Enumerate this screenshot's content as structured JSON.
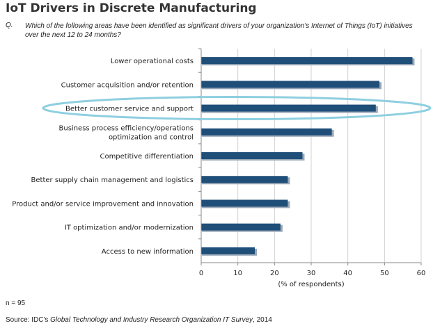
{
  "header": {
    "title": "IoT Drivers in Discrete Manufacturing",
    "q_label": "Q.",
    "question": "Which of the following areas have been identified as significant drivers of your organization's Internet of Things (IoT) initiatives over the next 12 to 24 months?"
  },
  "chart_data": {
    "type": "bar",
    "orientation": "horizontal",
    "categories": [
      [
        "Lower operational costs"
      ],
      [
        "Customer acquisition and/or retention"
      ],
      [
        "Better customer service and support"
      ],
      [
        "Business process efficiency/operations",
        "optimization and control"
      ],
      [
        "Competitive differentiation"
      ],
      [
        "Better supply chain management and logistics"
      ],
      [
        "Product and/or service improvement and innovation"
      ],
      [
        "IT optimization and/or modernization"
      ],
      [
        "Access to new information"
      ]
    ],
    "values": [
      58,
      49,
      48,
      36,
      28,
      24,
      24,
      22,
      15
    ],
    "xlabel": "(% of respondents)",
    "xlim": [
      0,
      60
    ],
    "xticks": [
      0,
      10,
      20,
      30,
      40,
      50,
      60
    ],
    "highlighted_index": 2,
    "grid": true,
    "bar_color": "#1f4e79",
    "highlight_color": "#8ecfe0"
  },
  "footer": {
    "n_note": "n = 95",
    "source_prefix": "Source: IDC's ",
    "source_title": "Global Technology and Industry Research Organization IT Survey",
    "source_suffix": ", 2014"
  }
}
